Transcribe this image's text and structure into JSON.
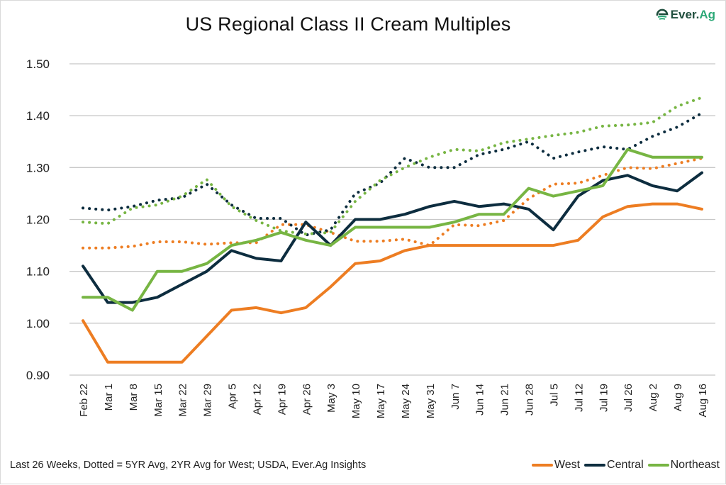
{
  "logo": {
    "brand": "Ever.",
    "brand_suffix": "Ag"
  },
  "footnote": "Last 26 Weeks, Dotted = 5YR Avg, 2YR Avg for West; USDA, Ever.Ag Insights",
  "chart_data": {
    "type": "line",
    "title": "US Regional Class II Cream Multiples",
    "xlabel": "",
    "ylabel": "",
    "ylim": [
      0.9,
      1.5
    ],
    "yticks": [
      "0.90",
      "1.00",
      "1.10",
      "1.20",
      "1.30",
      "1.40",
      "1.50"
    ],
    "grid": "horizontal",
    "legend_position": "bottom-right",
    "categories": [
      "Feb 22",
      "Mar 1",
      "Mar 8",
      "Mar 15",
      "Mar 22",
      "Mar 29",
      "Apr 5",
      "Apr 12",
      "Apr 19",
      "Apr 26",
      "May 3",
      "May 10",
      "May 17",
      "May 24",
      "May 31",
      "Jun 7",
      "Jun 14",
      "Jun 21",
      "Jun 28",
      "Jul 5",
      "Jul 12",
      "Jul 19",
      "Jul 26",
      "Aug 2",
      "Aug 9",
      "Aug 16"
    ],
    "series": [
      {
        "name": "West Avg",
        "style": "dotted",
        "color": "#ed7d22",
        "legend": false,
        "values": [
          1.145,
          1.145,
          1.148,
          1.157,
          1.157,
          1.152,
          1.155,
          1.155,
          1.19,
          1.19,
          1.175,
          1.158,
          1.158,
          1.162,
          1.15,
          1.19,
          1.188,
          1.198,
          1.24,
          1.268,
          1.27,
          1.285,
          1.3,
          1.298,
          1.308,
          1.318
        ]
      },
      {
        "name": "Central Avg",
        "style": "dotted",
        "color": "#0d2d3f",
        "legend": false,
        "values": [
          1.222,
          1.218,
          1.225,
          1.237,
          1.242,
          1.268,
          1.228,
          1.202,
          1.202,
          1.17,
          1.18,
          1.25,
          1.27,
          1.318,
          1.3,
          1.3,
          1.325,
          1.335,
          1.35,
          1.318,
          1.33,
          1.34,
          1.335,
          1.36,
          1.378,
          1.405
        ]
      },
      {
        "name": "Northeast Avg",
        "style": "dotted",
        "color": "#77b543",
        "legend": false,
        "values": [
          1.195,
          1.192,
          1.222,
          1.228,
          1.245,
          1.277,
          1.225,
          1.198,
          1.178,
          1.172,
          1.175,
          1.235,
          1.275,
          1.3,
          1.32,
          1.335,
          1.332,
          1.348,
          1.355,
          1.362,
          1.368,
          1.38,
          1.382,
          1.387,
          1.418,
          1.435
        ]
      },
      {
        "name": "West",
        "style": "solid",
        "color": "#ed7d22",
        "legend": true,
        "values": [
          1.005,
          0.925,
          0.925,
          0.925,
          0.925,
          0.975,
          1.025,
          1.03,
          1.02,
          1.03,
          1.07,
          1.115,
          1.12,
          1.14,
          1.15,
          1.15,
          1.15,
          1.15,
          1.15,
          1.15,
          1.16,
          1.205,
          1.225,
          1.23,
          1.23,
          1.22
        ]
      },
      {
        "name": "Central",
        "style": "solid",
        "color": "#0d2d3f",
        "legend": true,
        "values": [
          1.11,
          1.04,
          1.04,
          1.05,
          1.075,
          1.1,
          1.14,
          1.125,
          1.12,
          1.195,
          1.15,
          1.2,
          1.2,
          1.21,
          1.225,
          1.235,
          1.225,
          1.23,
          1.22,
          1.18,
          1.245,
          1.275,
          1.285,
          1.265,
          1.255,
          1.29
        ]
      },
      {
        "name": "Northeast",
        "style": "solid",
        "color": "#77b543",
        "legend": true,
        "values": [
          1.05,
          1.05,
          1.025,
          1.1,
          1.1,
          1.115,
          1.15,
          1.16,
          1.175,
          1.16,
          1.15,
          1.185,
          1.185,
          1.185,
          1.185,
          1.195,
          1.21,
          1.21,
          1.26,
          1.245,
          1.255,
          1.265,
          1.335,
          1.32,
          1.32,
          1.32
        ]
      }
    ],
    "legend_entries": [
      {
        "label": "West",
        "color": "#ed7d22"
      },
      {
        "label": "Central",
        "color": "#0d2d3f"
      },
      {
        "label": "Northeast",
        "color": "#77b543"
      }
    ]
  }
}
